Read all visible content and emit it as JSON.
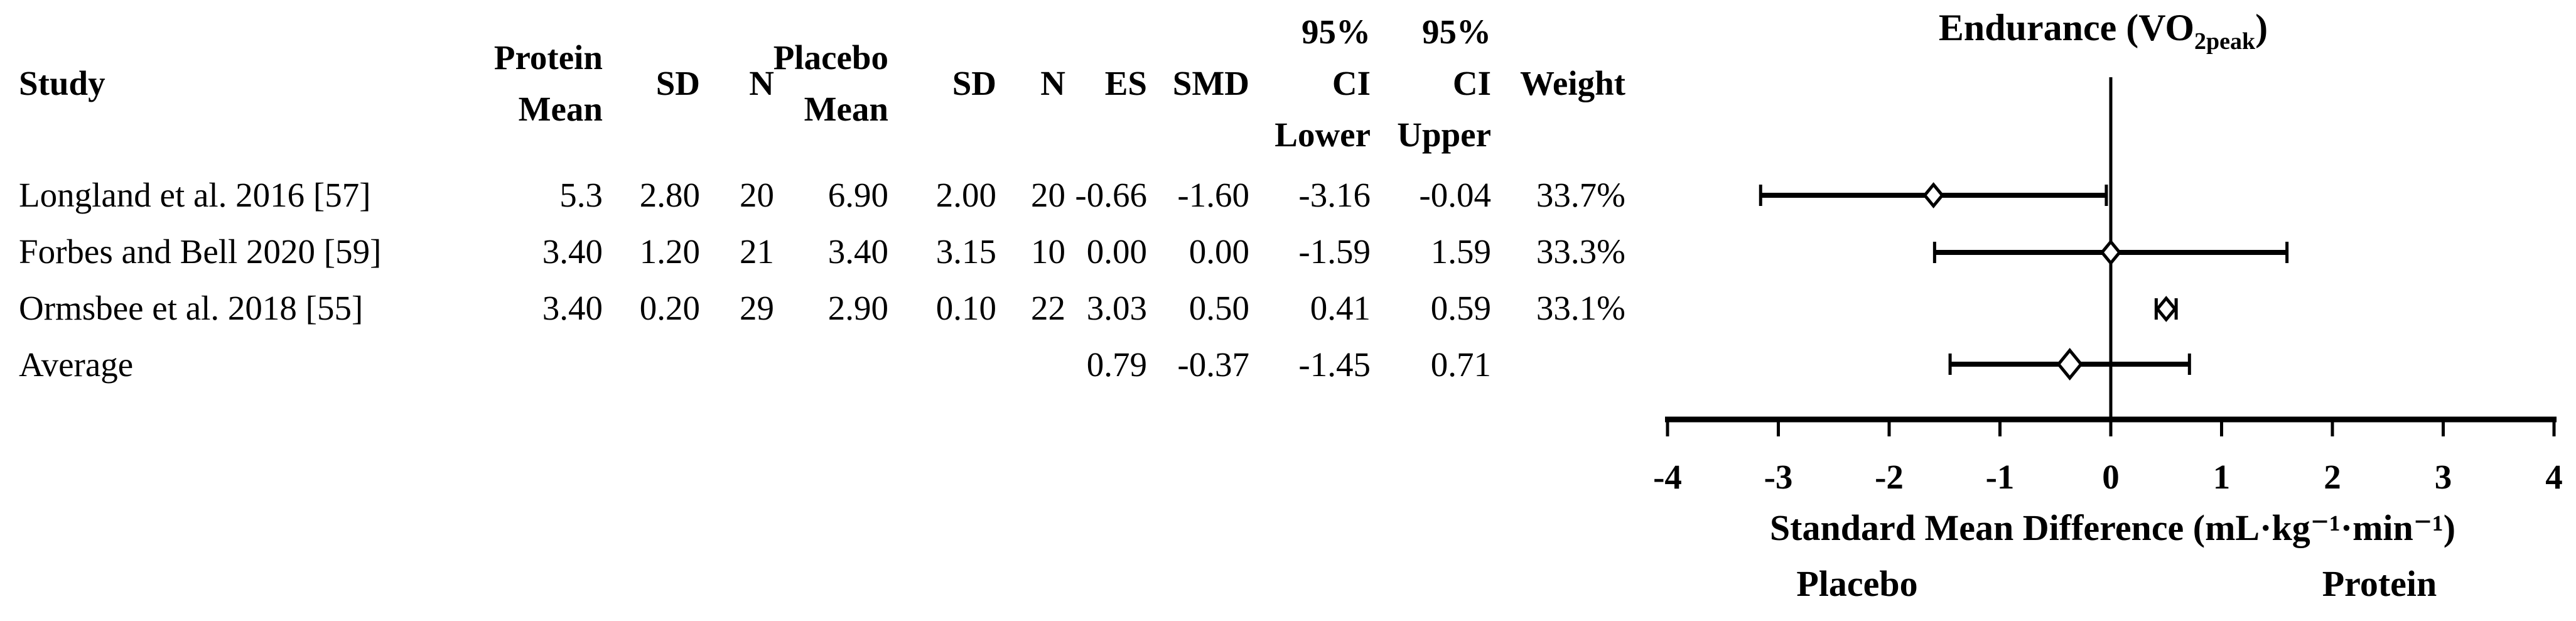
{
  "figure": {
    "title_full": "Endurance (VO2peak)",
    "title_prefix": "Endurance (VO",
    "title_sub": "2peak",
    "title_suffix": ")"
  },
  "colors": {
    "ink": "#000000",
    "background": "#ffffff"
  },
  "table": {
    "headers": {
      "study": "Study",
      "protein_line1": "Protein",
      "protein_line2": "Mean",
      "sd_protein": "SD",
      "n_protein": "N",
      "placebo_line1": "Placebo",
      "placebo_line2": "Mean",
      "sd_placebo": "SD",
      "n_placebo": "N",
      "es": "ES",
      "smd": "SMD",
      "ci_lower_line1": "95%",
      "ci_lower_line2": "CI",
      "ci_lower_line3": "Lower",
      "ci_upper_line1": "95%",
      "ci_upper_line2": "CI",
      "ci_upper_line3": "Upper",
      "weight": "Weight"
    },
    "rows": [
      {
        "study": "Longland et al. 2016 [57]",
        "protein_mean": "5.3",
        "protein_sd": "2.80",
        "protein_n": "20",
        "placebo_mean": "6.90",
        "placebo_sd": "2.00",
        "placebo_n": "20",
        "es": "-0.66",
        "smd": "-1.60",
        "ci_lower": "-3.16",
        "ci_upper": "-0.04",
        "weight": "33.7%"
      },
      {
        "study": "Forbes and Bell 2020 [59]",
        "protein_mean": "3.40",
        "protein_sd": "1.20",
        "protein_n": "21",
        "placebo_mean": "3.40",
        "placebo_sd": "3.15",
        "placebo_n": "10",
        "es": "0.00",
        "smd": "0.00",
        "ci_lower": "-1.59",
        "ci_upper": "1.59",
        "weight": "33.3%"
      },
      {
        "study": "Ormsbee et al. 2018 [55]",
        "protein_mean": "3.40",
        "protein_sd": "0.20",
        "protein_n": "29",
        "placebo_mean": "2.90",
        "placebo_sd": "0.10",
        "placebo_n": "22",
        "es": "3.03",
        "smd": "0.50",
        "ci_lower": "0.41",
        "ci_upper": "0.59",
        "weight": "33.1%"
      },
      {
        "study": "Average",
        "protein_mean": "",
        "protein_sd": "",
        "protein_n": "",
        "placebo_mean": "",
        "placebo_sd": "",
        "placebo_n": "",
        "es": "0.79",
        "smd": "-0.37",
        "ci_lower": "-1.45",
        "ci_upper": "0.71",
        "weight": ""
      }
    ]
  },
  "chart_data": {
    "type": "scatter",
    "variant": "forest-plot",
    "title": "Endurance (VO2peak)",
    "xlabel": "Standard Mean Difference (mL·kg⁻¹·min⁻¹)",
    "xlim": [
      -4,
      4
    ],
    "x_ticks": [
      -4,
      -3,
      -2,
      -1,
      0,
      1,
      2,
      3,
      4
    ],
    "zero_line_x": 0,
    "grid": false,
    "axis_side_labels": {
      "left": "Placebo",
      "right": "Protein"
    },
    "series": [
      {
        "name": "Longland et al. 2016 [57]",
        "smd": -1.6,
        "ci_lower": -3.16,
        "ci_upper": -0.04,
        "weight_pct": 33.7,
        "marker": "diamond-small"
      },
      {
        "name": "Forbes and Bell 2020 [59]",
        "smd": 0.0,
        "ci_lower": -1.59,
        "ci_upper": 1.59,
        "weight_pct": 33.3,
        "marker": "diamond-small"
      },
      {
        "name": "Ormsbee et al. 2018 [55]",
        "smd": 0.5,
        "ci_lower": 0.41,
        "ci_upper": 0.59,
        "weight_pct": 33.1,
        "marker": "diamond-small"
      },
      {
        "name": "Average",
        "smd": -0.37,
        "ci_lower": -1.45,
        "ci_upper": 0.71,
        "marker": "diamond-large"
      }
    ]
  }
}
